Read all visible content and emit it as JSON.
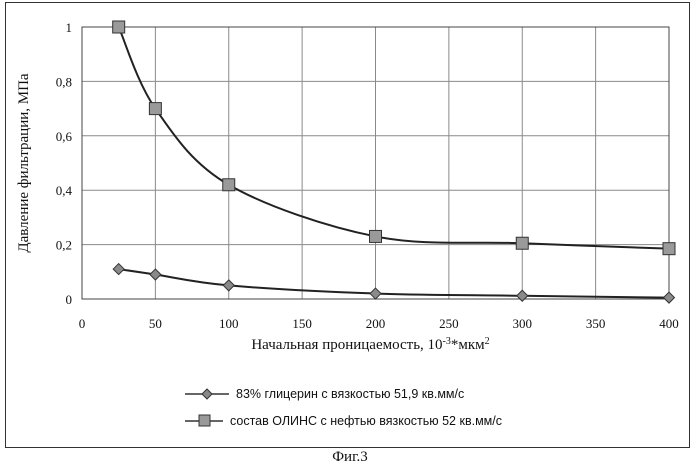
{
  "caption": "Фиг.3",
  "chart_data": {
    "type": "line",
    "xlabel": "Начальная проницаемость, 10",
    "xlabel_sup1": "-3",
    "xlabel_mid": "*мкм",
    "xlabel_sup2": "2",
    "ylabel": "Давление фильтрации, МПа",
    "xlim": [
      0,
      400
    ],
    "ylim": [
      0,
      1
    ],
    "xticks": [
      0,
      50,
      100,
      150,
      200,
      250,
      300,
      350,
      400
    ],
    "xtick_labels": [
      "0",
      "50",
      "100",
      "150",
      "200",
      "250",
      "300",
      "350",
      "400"
    ],
    "yticks": [
      0,
      0.2,
      0.4,
      0.6,
      0.8,
      1
    ],
    "ytick_labels": [
      "0",
      "0,2",
      "0,4",
      "0,6",
      "0,8",
      "1"
    ],
    "grid": true,
    "legend_position": "bottom",
    "series": [
      {
        "name": "83% глицерин с вязкостью 51,9 кв.мм/с",
        "marker": "diamond",
        "x": [
          25,
          50,
          100,
          200,
          300,
          400
        ],
        "y": [
          0.11,
          0.09,
          0.05,
          0.02,
          0.012,
          0.005
        ]
      },
      {
        "name": "состав ОЛИНС с нефтью вязкостью 52 кв.мм/с",
        "marker": "square",
        "x": [
          25,
          50,
          100,
          200,
          300,
          400
        ],
        "y": [
          1.0,
          0.7,
          0.42,
          0.23,
          0.205,
          0.185
        ]
      }
    ]
  }
}
